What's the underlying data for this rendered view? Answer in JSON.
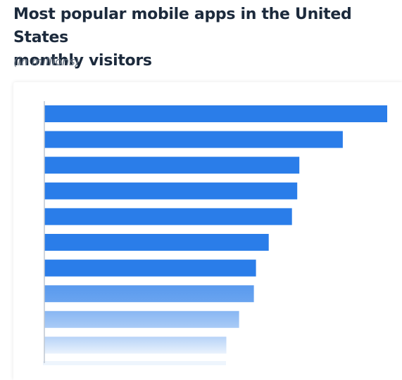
{
  "title": {
    "line1": "Most popular mobile apps in the United States",
    "line2": "monthly visitors"
  },
  "subtitle": "(in millions)",
  "colors": {
    "bar": "#2a7de9",
    "axis": "#bfc7d1",
    "title": "#1c2a3c",
    "subtitle": "#6b7785"
  },
  "chart_data": {
    "type": "bar",
    "orientation": "horizontal",
    "series": [
      {
        "values": [
          162,
          141,
          120.5,
          119.5,
          117,
          106,
          100,
          99,
          92,
          86
        ]
      }
    ],
    "xlim": [
      0,
      162
    ],
    "grid": false,
    "legend": "none",
    "fade_last_rows": true
  }
}
